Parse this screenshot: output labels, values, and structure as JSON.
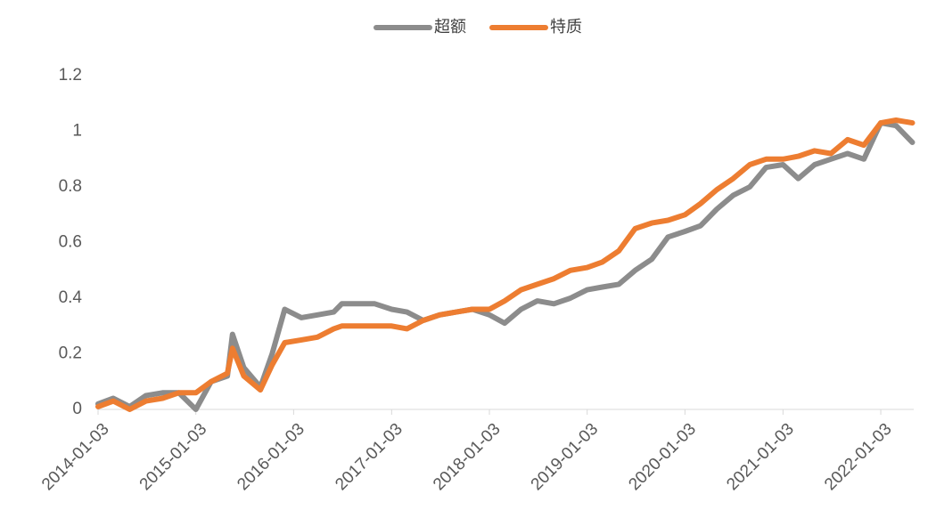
{
  "chart_data": {
    "type": "line",
    "x": [
      "2014-01-03",
      "2014-03-01",
      "2014-05-01",
      "2014-07-01",
      "2014-09-01",
      "2014-11-01",
      "2015-01-03",
      "2015-03-01",
      "2015-05-01",
      "2015-05-20",
      "2015-07-01",
      "2015-09-01",
      "2015-10-15",
      "2015-12-01",
      "2016-02-01",
      "2016-04-01",
      "2016-06-01",
      "2016-07-01",
      "2016-09-01",
      "2016-11-01",
      "2017-01-03",
      "2017-03-01",
      "2017-05-01",
      "2017-07-01",
      "2017-09-01",
      "2017-11-01",
      "2018-01-03",
      "2018-03-01",
      "2018-05-01",
      "2018-07-01",
      "2018-09-01",
      "2018-11-01",
      "2019-01-03",
      "2019-03-01",
      "2019-05-01",
      "2019-07-01",
      "2019-09-01",
      "2019-11-01",
      "2020-01-03",
      "2020-03-01",
      "2020-05-01",
      "2020-07-01",
      "2020-09-01",
      "2020-11-01",
      "2021-01-03",
      "2021-03-01",
      "2021-05-01",
      "2021-07-01",
      "2021-09-01",
      "2021-11-01",
      "2022-01-03",
      "2022-03-01",
      "2022-05-01"
    ],
    "series": [
      {
        "name": "超额",
        "color": "#8c8c8c",
        "values": [
          0.02,
          0.04,
          0.01,
          0.05,
          0.06,
          0.06,
          0.0,
          0.1,
          0.12,
          0.27,
          0.15,
          0.08,
          0.2,
          0.36,
          0.33,
          0.34,
          0.35,
          0.38,
          0.38,
          0.38,
          0.36,
          0.35,
          0.32,
          0.34,
          0.35,
          0.36,
          0.34,
          0.31,
          0.36,
          0.39,
          0.38,
          0.4,
          0.43,
          0.44,
          0.45,
          0.5,
          0.54,
          0.62,
          0.64,
          0.66,
          0.72,
          0.77,
          0.8,
          0.87,
          0.88,
          0.83,
          0.88,
          0.9,
          0.92,
          0.9,
          1.03,
          1.02,
          0.96
        ]
      },
      {
        "name": "特质",
        "color": "#ed7d31",
        "values": [
          0.01,
          0.03,
          0.0,
          0.03,
          0.04,
          0.06,
          0.06,
          0.1,
          0.13,
          0.22,
          0.12,
          0.07,
          0.16,
          0.24,
          0.25,
          0.26,
          0.29,
          0.3,
          0.3,
          0.3,
          0.3,
          0.29,
          0.32,
          0.34,
          0.35,
          0.36,
          0.36,
          0.39,
          0.43,
          0.45,
          0.47,
          0.5,
          0.51,
          0.53,
          0.57,
          0.65,
          0.67,
          0.68,
          0.7,
          0.74,
          0.79,
          0.83,
          0.88,
          0.9,
          0.9,
          0.91,
          0.93,
          0.92,
          0.97,
          0.95,
          1.03,
          1.04,
          1.03
        ]
      }
    ],
    "xlim": [
      "2014-01-03",
      "2022-05-06"
    ],
    "xticks": [
      "2014-01-03",
      "2015-01-03",
      "2016-01-03",
      "2017-01-03",
      "2018-01-03",
      "2019-01-03",
      "2020-01-03",
      "2021-01-03",
      "2022-01-03"
    ],
    "ylim": [
      0,
      1.2
    ],
    "yticks": [
      0,
      0.2,
      0.4,
      0.6,
      0.8,
      1,
      1.2
    ],
    "legend": "top"
  }
}
